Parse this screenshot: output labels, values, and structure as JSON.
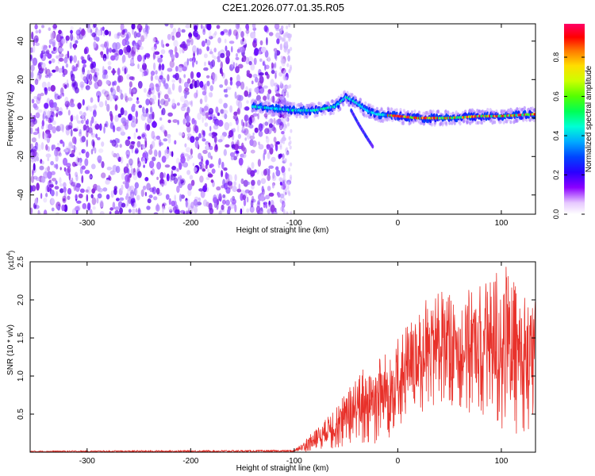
{
  "title": "C2E1.2026.077.01.35.R05",
  "chart_data": [
    {
      "type": "heatmap",
      "name": "spectrogram",
      "xlabel": "Height of straight line (km)",
      "ylabel": "Frequency (Hz)",
      "xlim": [
        -355,
        133
      ],
      "ylim": [
        -50,
        49
      ],
      "x_ticks": [
        -300,
        -200,
        -100,
        0,
        100
      ],
      "y_ticks": [
        -40,
        -20,
        0,
        20,
        40
      ],
      "noise_region_x": [
        -355,
        -105
      ],
      "signal_track": [
        {
          "x": -140,
          "y": 6
        },
        {
          "x": -120,
          "y": 5
        },
        {
          "x": -100,
          "y": 4
        },
        {
          "x": -80,
          "y": 4
        },
        {
          "x": -60,
          "y": 6
        },
        {
          "x": -50,
          "y": 11
        },
        {
          "x": -40,
          "y": 8
        },
        {
          "x": -30,
          "y": 4
        },
        {
          "x": -20,
          "y": 2
        },
        {
          "x": 0,
          "y": 1
        },
        {
          "x": 20,
          "y": 0
        },
        {
          "x": 50,
          "y": 0
        },
        {
          "x": 80,
          "y": 1
        },
        {
          "x": 100,
          "y": 1
        },
        {
          "x": 133,
          "y": 2
        }
      ],
      "secondary_branch": [
        {
          "x": -45,
          "y": 4
        },
        {
          "x": -38,
          "y": -3
        },
        {
          "x": -30,
          "y": -10
        },
        {
          "x": -24,
          "y": -15
        }
      ],
      "colorbar": {
        "label": "Normalized spectral amplitude",
        "range": [
          0,
          0.97
        ],
        "ticks": [
          0.0,
          0.2,
          0.4,
          0.6,
          0.8
        ]
      }
    },
    {
      "type": "line",
      "name": "snr",
      "xlabel": "Height of straight line (km)",
      "ylabel": "SNR (10 * v/v)",
      "y_multiplier": "(x10",
      "y_multiplier_exp": "4",
      "y_multiplier_close": ")",
      "xlim": [
        -355,
        133
      ],
      "ylim": [
        0,
        2.5
      ],
      "x_ticks": [
        -300,
        -200,
        -100,
        0,
        100
      ],
      "y_ticks": [
        0.5,
        1.0,
        1.5,
        2.0,
        2.5
      ],
      "color": "#e8312a",
      "envelope": [
        {
          "x": -355,
          "lo": 0.0,
          "hi": 0.02
        },
        {
          "x": -100,
          "lo": 0.0,
          "hi": 0.03
        },
        {
          "x": -80,
          "lo": 0.01,
          "hi": 0.3
        },
        {
          "x": -60,
          "lo": 0.05,
          "hi": 0.6
        },
        {
          "x": -40,
          "lo": 0.1,
          "hi": 1.0
        },
        {
          "x": -20,
          "lo": 0.1,
          "hi": 1.3
        },
        {
          "x": 0,
          "lo": 0.2,
          "hi": 1.5
        },
        {
          "x": 20,
          "lo": 0.5,
          "hi": 1.9
        },
        {
          "x": 40,
          "lo": 0.6,
          "hi": 2.2
        },
        {
          "x": 60,
          "lo": 0.6,
          "hi": 2.0
        },
        {
          "x": 80,
          "lo": 0.4,
          "hi": 2.3
        },
        {
          "x": 100,
          "lo": 0.2,
          "hi": 2.5
        },
        {
          "x": 133,
          "lo": 0.3,
          "hi": 2.0
        }
      ]
    }
  ]
}
